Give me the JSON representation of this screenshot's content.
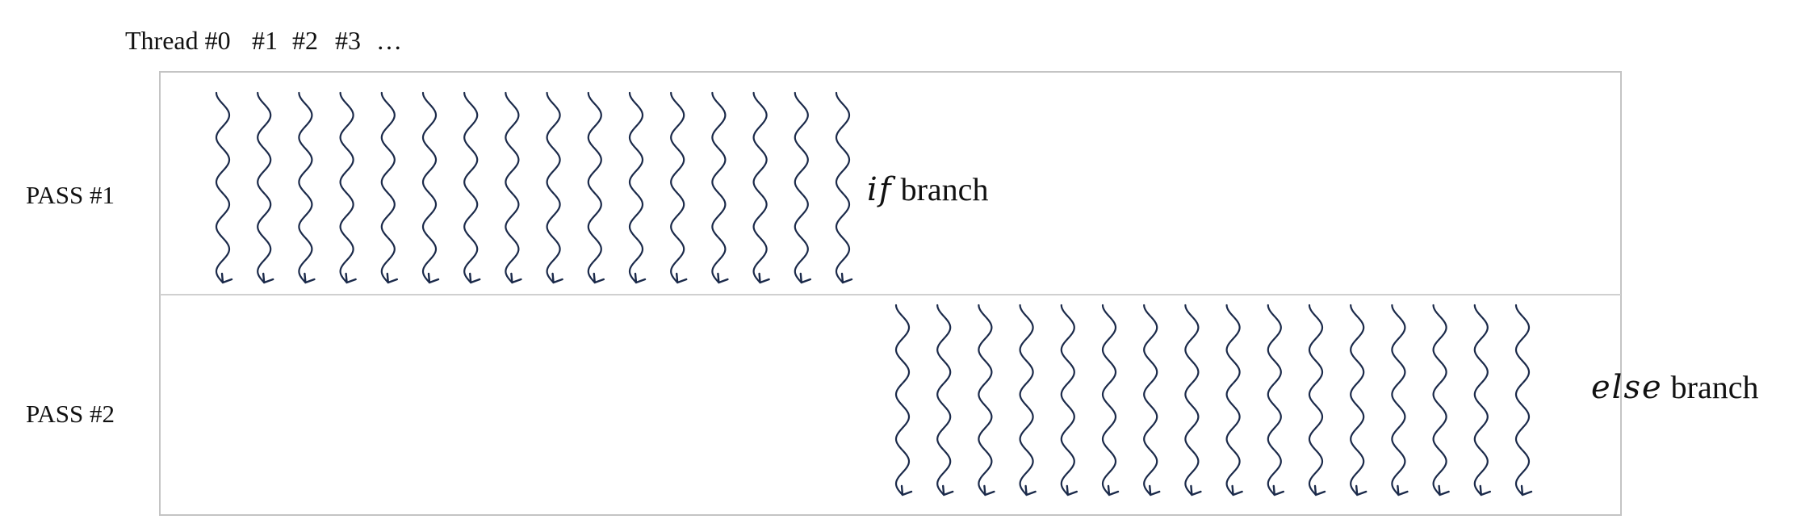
{
  "header": {
    "thread_label": "Thread #0",
    "thread_indices": [
      "#1",
      "#2",
      "#3",
      "…"
    ]
  },
  "passes": [
    {
      "label": "PASS #1",
      "branch_keyword": "if",
      "branch_suffix": " branch",
      "thread_count": 16
    },
    {
      "label": "PASS #2",
      "branch_keyword": "else",
      "branch_suffix": " branch",
      "thread_count": 16
    }
  ],
  "colors": {
    "thread_stroke": "#1b2a4a",
    "frame_stroke": "#c4c4c4",
    "text": "#111111"
  }
}
